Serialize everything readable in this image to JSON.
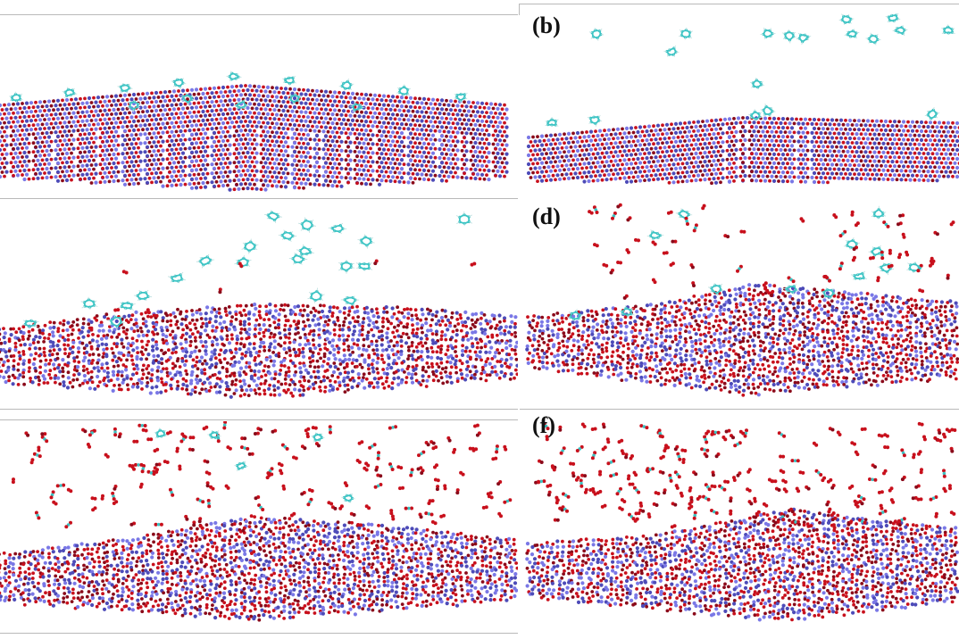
{
  "figure": {
    "panels": [
      {
        "id": "a",
        "label": "",
        "surface": "ordered",
        "molecules": "benzene-flat-row",
        "gas": "none"
      },
      {
        "id": "b",
        "label": "(b)",
        "surface": "ordered-thin",
        "molecules": "benzene-sparse",
        "gas": "none"
      },
      {
        "id": "c",
        "label": "",
        "surface": "mixed",
        "molecules": "benzene-cloud",
        "gas": "sparse"
      },
      {
        "id": "d",
        "label": "(d)",
        "surface": "mixed",
        "molecules": "benzene-cloud",
        "gas": "moderate"
      },
      {
        "id": "e",
        "label": "",
        "surface": "disordered",
        "molecules": "fragments",
        "gas": "dense"
      },
      {
        "id": "f",
        "label": "(f)",
        "surface": "disordered",
        "molecules": "fragments",
        "gas": "dense"
      }
    ],
    "colors": {
      "oxygen": "#c8101c",
      "oxygen_dark": "#8a0a1a",
      "metal": "#7a78e6",
      "metal_dark": "#4d4bb8",
      "carbon": "#3bc4c4",
      "hydrogen": "#e8f4f4",
      "frame": "#b9b9b9",
      "label": "#111111"
    }
  }
}
